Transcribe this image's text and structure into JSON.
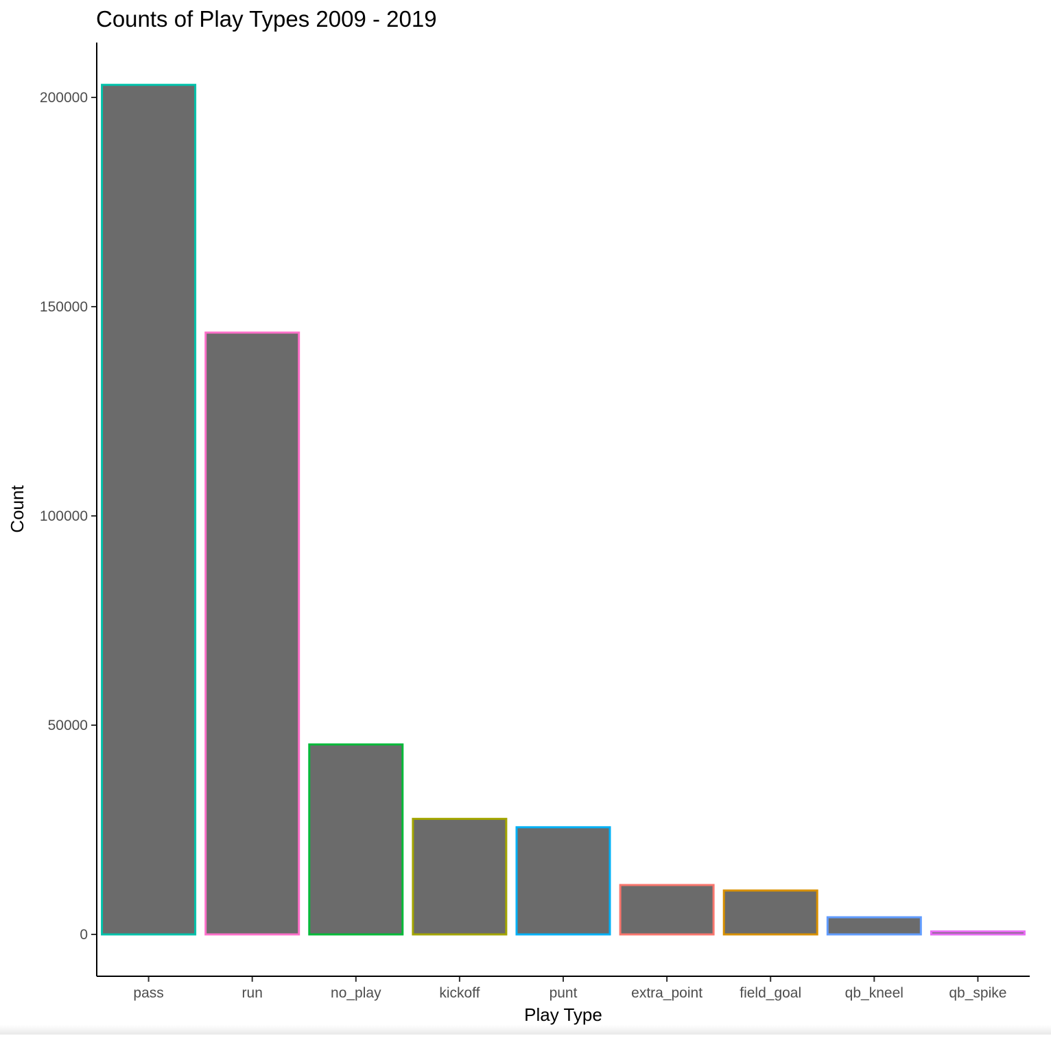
{
  "chart_data": {
    "type": "bar",
    "title": "Counts of Play Types 2009 - 2019",
    "xlabel": "Play Type",
    "ylabel": "Count",
    "categories": [
      "pass",
      "run",
      "no_play",
      "kickoff",
      "punt",
      "extra_point",
      "field_goal",
      "qb_kneel",
      "qb_spike"
    ],
    "values": [
      203000,
      143800,
      45400,
      27600,
      25600,
      11800,
      10500,
      4100,
      700
    ],
    "bar_outline_colors": [
      "#00C1AA",
      "#FF6FC9",
      "#00BA38",
      "#A3A500",
      "#00B0F6",
      "#F8766D",
      "#D89000",
      "#619CFF",
      "#E76BF3"
    ],
    "bar_fill_color": "#6b6b6b",
    "yticks": [
      0,
      50000,
      100000,
      150000,
      200000
    ],
    "ytick_labels": [
      "0",
      "50000",
      "100000",
      "150000",
      "200000"
    ],
    "ylim": [
      -10000,
      212500
    ],
    "grid": false,
    "legend": "none"
  }
}
